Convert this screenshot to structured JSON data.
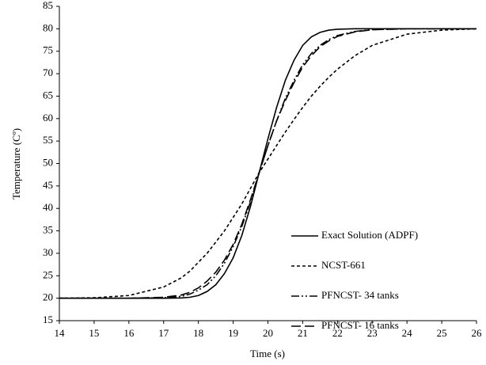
{
  "chart_data": {
    "type": "line",
    "xlabel": "Time (s)",
    "ylabel": "Temperature (Cº)",
    "x": [
      14,
      15,
      16,
      17,
      17.5,
      17.75,
      18,
      18.25,
      18.5,
      18.75,
      19,
      19.25,
      19.5,
      19.75,
      20,
      20.25,
      20.5,
      20.75,
      21,
      21.25,
      21.5,
      21.75,
      22,
      22.5,
      23,
      24,
      25,
      26
    ],
    "series": [
      {
        "name": "Exact Solution (ADPF)",
        "color": "#000000",
        "style": "solid",
        "values": [
          20,
          20,
          20,
          20,
          20.05,
          20.2,
          20.6,
          21.5,
          23,
          25.5,
          29,
          34,
          40.5,
          48,
          55.5,
          62.5,
          68.5,
          73,
          76.3,
          78.2,
          79.2,
          79.7,
          79.9,
          80,
          80,
          80,
          80,
          80
        ]
      },
      {
        "name": "NCST-661",
        "color": "#000000",
        "style": "dashed",
        "values": [
          20,
          20.1,
          20.6,
          22.5,
          24.5,
          26,
          28,
          30,
          32.5,
          35,
          38,
          41,
          44.5,
          48,
          51,
          54,
          57,
          59.8,
          62.5,
          65,
          67.2,
          69.2,
          71,
          74,
          76.3,
          78.8,
          79.7,
          80
        ]
      },
      {
        "name": "PFNCST- 34 tanks",
        "color": "#000000",
        "style": "dashdotdot",
        "values": [
          20,
          20,
          20,
          20.1,
          20.4,
          20.9,
          21.8,
          23,
          25,
          27.8,
          31.5,
          36,
          41.5,
          48,
          54,
          59.5,
          64.5,
          68.5,
          72,
          74.5,
          76.3,
          77.6,
          78.5,
          79.4,
          79.8,
          80,
          80,
          80
        ]
      },
      {
        "name": "PFNCST- 16 tanks",
        "color": "#000000",
        "style": "longdash",
        "values": [
          20,
          20,
          20,
          20.2,
          20.7,
          21.3,
          22.3,
          23.8,
          25.8,
          28.5,
          32,
          36.5,
          42,
          48,
          54,
          59.5,
          64,
          68,
          71.5,
          74,
          76,
          77.3,
          78.3,
          79.3,
          79.8,
          80,
          80,
          80
        ]
      }
    ],
    "xlim": [
      14,
      26
    ],
    "xticks": [
      14,
      15,
      16,
      17,
      18,
      19,
      20,
      21,
      22,
      23,
      24,
      25,
      26
    ],
    "ylim": [
      15,
      85
    ],
    "yticks": [
      15,
      20,
      25,
      30,
      35,
      40,
      45,
      50,
      55,
      60,
      65,
      70,
      75,
      80,
      85
    ],
    "grid": false,
    "legend": "lower right"
  }
}
